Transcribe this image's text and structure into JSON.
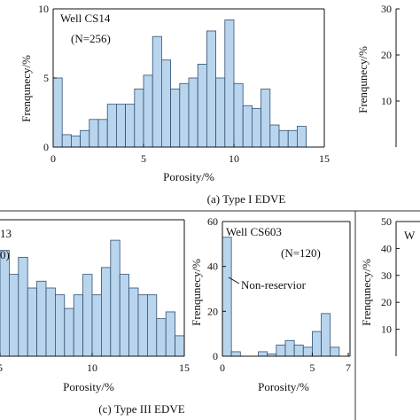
{
  "figure": {
    "caption_a": "(a) Type I EDVE",
    "caption_c": "(c) Type III EDVE"
  },
  "colors": {
    "bar_fill": "#b9d5ee",
    "bar_stroke": "#2f4f72",
    "axis": "#111111"
  },
  "chart_data": [
    {
      "id": "a",
      "type": "bar",
      "well_label": "Well CS14",
      "n_label": "(N=256)",
      "xlabel": "Porosity/%",
      "ylabel": "Frenqunecy/%",
      "xlim": [
        0,
        15
      ],
      "ylim": [
        0,
        10
      ],
      "xticks": [
        0,
        5,
        10,
        15
      ],
      "yticks": [
        0,
        5,
        10
      ],
      "bin_width": 0.5,
      "bin_start": 0,
      "values": [
        5.0,
        0.9,
        0.8,
        1.2,
        2.0,
        2.0,
        3.1,
        3.1,
        3.1,
        4.2,
        5.2,
        8.0,
        6.3,
        4.2,
        4.6,
        5.0,
        6.0,
        8.4,
        5.0,
        9.2,
        4.6,
        3.0,
        2.8,
        4.2,
        1.6,
        1.2,
        1.2,
        1.5
      ]
    },
    {
      "id": "c-left",
      "type": "bar",
      "well_label": "13",
      "n_label": "0)",
      "xlabel": "Porosity/%",
      "ylabel": "",
      "xlim": [
        5,
        15
      ],
      "ylim": [
        0,
        20
      ],
      "xticks": [
        5,
        10,
        15
      ],
      "yticks": [],
      "bin_width": 0.5,
      "bin_start": 4.5,
      "values": [
        3,
        15.5,
        12,
        14.5,
        10,
        11,
        10,
        9,
        7,
        9,
        12,
        9,
        13,
        17,
        12,
        10,
        9,
        9,
        5.5,
        6.5,
        3
      ]
    },
    {
      "id": "c-right",
      "type": "bar",
      "well_label": "Well CS603",
      "n_label": "(N=120)",
      "xlabel": "Porosity/%",
      "ylabel": "Frenqunecy/%",
      "xlim": [
        0,
        7
      ],
      "ylim": [
        0,
        60
      ],
      "xticks": [
        0,
        5,
        7
      ],
      "yticks": [
        0,
        20,
        40,
        60
      ],
      "bin_width": 0.5,
      "bin_start": 0,
      "values": [
        53,
        2,
        0,
        0,
        2,
        1,
        5,
        7,
        5,
        4,
        11,
        19,
        4
      ],
      "annotation": "Non-reservior"
    },
    {
      "id": "b-partial",
      "type": "bar",
      "ylabel": "Frenqunecy/%",
      "yticks": [
        10,
        20,
        30
      ],
      "ylim": [
        0,
        30
      ],
      "values": []
    },
    {
      "id": "d-partial",
      "type": "bar",
      "well_label": "W",
      "ylabel": "Frenqunecy/%",
      "yticks": [
        10,
        20,
        30,
        40,
        50
      ],
      "ylim": [
        0,
        50
      ],
      "values": []
    }
  ]
}
